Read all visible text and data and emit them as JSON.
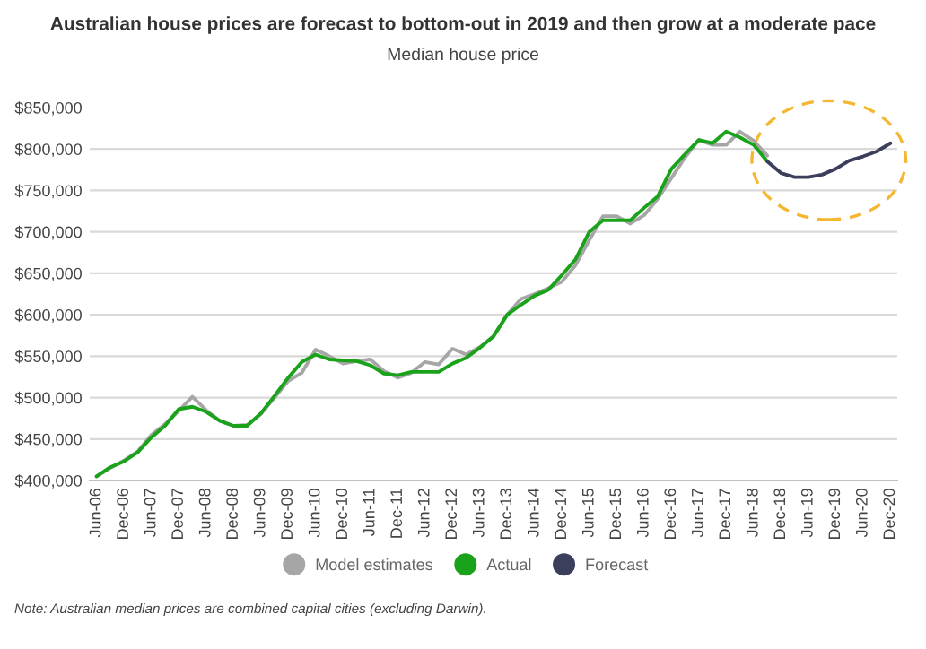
{
  "chart_data": {
    "type": "line",
    "title": "Australian house prices are forecast to bottom-out in 2019 and then grow at a moderate pace",
    "subtitle": "Median house price",
    "categories": [
      "Jun-06",
      null,
      "Dec-06",
      null,
      "Jun-07",
      null,
      "Dec-07",
      null,
      "Jun-08",
      null,
      "Dec-08",
      null,
      "Jun-09",
      null,
      "Dec-09",
      null,
      "Jun-10",
      null,
      "Dec-10",
      null,
      "Jun-11",
      null,
      "Dec-11",
      null,
      "Jun-12",
      null,
      "Dec-12",
      null,
      "Jun-13",
      null,
      "Dec-13",
      null,
      "Jun-14",
      null,
      "Dec-14",
      null,
      "Jun-15",
      null,
      "Dec-15",
      null,
      "Jun-16",
      null,
      "Dec-16",
      null,
      "Jun-17",
      null,
      "Dec-17",
      null,
      "Jun-18",
      null,
      "Dec-18",
      null,
      "Jun-19",
      null,
      "Dec-19",
      null,
      "Jun-20",
      null,
      "Dec-20"
    ],
    "series": [
      {
        "name": "Model estimates",
        "color": "#a6a6a6",
        "values": [
          405000,
          415000,
          424000,
          435000,
          455000,
          468000,
          484000,
          501000,
          485000,
          472000,
          466000,
          467000,
          480000,
          500000,
          520000,
          530000,
          558000,
          550000,
          541000,
          544000,
          546000,
          532000,
          524000,
          530000,
          543000,
          540000,
          559000,
          552000,
          561000,
          574000,
          600000,
          619000,
          625000,
          632000,
          640000,
          660000,
          690000,
          719000,
          719000,
          710000,
          720000,
          740000,
          765000,
          790000,
          811000,
          805000,
          805000,
          821000,
          810000,
          792000,
          null,
          null,
          null,
          null,
          null,
          null,
          null,
          null,
          null
        ]
      },
      {
        "name": "Actual",
        "color": "#1aa31a",
        "values": [
          405000,
          416000,
          423000,
          434000,
          452000,
          466000,
          486000,
          489000,
          483000,
          472000,
          466000,
          466000,
          481000,
          502000,
          524000,
          543000,
          552000,
          546000,
          545000,
          544000,
          539000,
          529000,
          527000,
          531000,
          531000,
          531000,
          541000,
          548000,
          560000,
          574000,
          600000,
          612000,
          623000,
          630000,
          648000,
          667000,
          700000,
          714000,
          714000,
          714000,
          729000,
          743000,
          776000,
          794000,
          811000,
          807000,
          821000,
          814000,
          805000,
          785000,
          null,
          null,
          null,
          null,
          null,
          null,
          null,
          null,
          null
        ]
      },
      {
        "name": "Forecast",
        "color": "#3b3f5c",
        "values": [
          null,
          null,
          null,
          null,
          null,
          null,
          null,
          null,
          null,
          null,
          null,
          null,
          null,
          null,
          null,
          null,
          null,
          null,
          null,
          null,
          null,
          null,
          null,
          null,
          null,
          null,
          null,
          null,
          null,
          null,
          null,
          null,
          null,
          null,
          null,
          null,
          null,
          null,
          null,
          null,
          null,
          null,
          null,
          null,
          null,
          null,
          null,
          null,
          null,
          785000,
          771000,
          766000,
          766000,
          769000,
          776000,
          786000,
          791000,
          797000,
          807000
        ]
      }
    ],
    "ylim": [
      400000,
      850000
    ],
    "yticks": [
      {
        "value": 400000,
        "label": "$400,000"
      },
      {
        "value": 450000,
        "label": "$450,000"
      },
      {
        "value": 500000,
        "label": "$500,000"
      },
      {
        "value": 550000,
        "label": "$550,000"
      },
      {
        "value": 600000,
        "label": "$600,000"
      },
      {
        "value": 650000,
        "label": "$650,000"
      },
      {
        "value": 700000,
        "label": "$700,000"
      },
      {
        "value": 750000,
        "label": "$750,000"
      },
      {
        "value": 800000,
        "label": "$800,000"
      },
      {
        "value": 850000,
        "label": "$850,000"
      }
    ],
    "grid": "y",
    "legend": "bottom",
    "annotations": [
      "Note: Australian median prices are combined capital cities (excluding Darwin)."
    ]
  }
}
